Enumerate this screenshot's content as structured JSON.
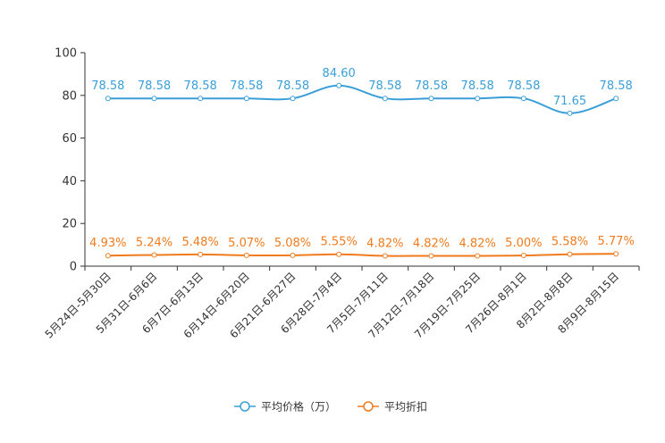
{
  "chart_data": {
    "type": "line",
    "title": "",
    "xlabel": "",
    "ylabel": "",
    "ylim": [
      0,
      100
    ],
    "yticks": [
      0,
      20,
      40,
      60,
      80,
      100
    ],
    "grid": false,
    "legend_position": "bottom-center",
    "categories": [
      "5月24日-5月30日",
      "5月31日-6月6日",
      "6月7日-6月13日",
      "6月14日-6月20日",
      "6月21日-6月27日",
      "6月28日-7月4日",
      "7月5日-7月11日",
      "7月12日-7月18日",
      "7月19日-7月25日",
      "7月26日-8月1日",
      "8月2日-8月8日",
      "8月9日-8月15日"
    ],
    "series": [
      {
        "name": "平均价格（万）",
        "color": "#3a9fd8",
        "values": [
          78.58,
          78.58,
          78.58,
          78.58,
          78.58,
          84.6,
          78.58,
          78.58,
          78.58,
          78.58,
          71.65,
          78.58
        ],
        "labels": [
          "78.58",
          "78.58",
          "78.58",
          "78.58",
          "78.58",
          "84.60",
          "78.58",
          "78.58",
          "78.58",
          "78.58",
          "71.65",
          "78.58"
        ]
      },
      {
        "name": "平均折扣",
        "color": "#f07b1d",
        "values": [
          4.93,
          5.24,
          5.48,
          5.07,
          5.08,
          5.55,
          4.82,
          4.82,
          4.82,
          5.0,
          5.58,
          5.77
        ],
        "labels": [
          "4.93%",
          "5.24%",
          "5.48%",
          "5.07%",
          "5.08%",
          "5.55%",
          "4.82%",
          "4.82%",
          "4.82%",
          "5.00%",
          "5.58%",
          "5.77%"
        ]
      }
    ]
  }
}
